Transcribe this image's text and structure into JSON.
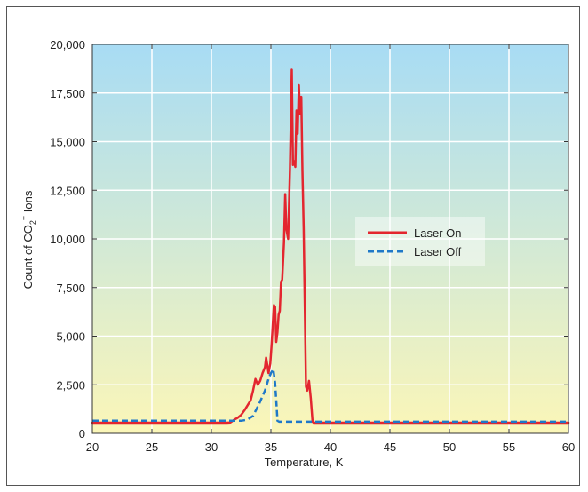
{
  "chart_data": {
    "type": "line",
    "title": "",
    "xlabel": "Temperature, K",
    "ylabel": {
      "prefix": "Count of CO",
      "subscript": "2",
      "superscript": "+",
      "suffix": " Ions"
    },
    "xlim": [
      20,
      60
    ],
    "ylim": [
      0,
      20000
    ],
    "xticks": [
      20,
      25,
      30,
      35,
      40,
      45,
      50,
      55,
      60
    ],
    "yticks": [
      0,
      2500,
      5000,
      7500,
      10000,
      12500,
      15000,
      17500,
      20000
    ],
    "xtick_labels": [
      "20",
      "25",
      "30",
      "35",
      "40",
      "45",
      "50",
      "55",
      "60"
    ],
    "ytick_labels": [
      "0",
      "2,500",
      "5,000",
      "7,500",
      "10,000",
      "12,500",
      "15,000",
      "17,500",
      "20,000"
    ],
    "grid": true,
    "legend_position": "right-center",
    "background_gradient": [
      "#a8dcf4",
      "#fbf6b8"
    ],
    "series": [
      {
        "name": "Laser On",
        "color": "#e3262f",
        "style": "solid",
        "x": [
          20,
          31.3,
          31.6,
          31.9,
          32.2,
          32.5,
          32.8,
          33.1,
          33.3,
          33.5,
          33.7,
          33.9,
          34.1,
          34.3,
          34.5,
          34.6,
          34.7,
          34.8,
          34.95,
          35.05,
          35.15,
          35.25,
          35.35,
          35.45,
          35.55,
          35.65,
          35.75,
          35.85,
          35.95,
          36.1,
          36.2,
          36.3,
          36.45,
          36.6,
          36.75,
          36.85,
          36.95,
          37.05,
          37.15,
          37.25,
          37.35,
          37.45,
          37.55,
          37.65,
          37.75,
          37.85,
          37.95,
          38.05,
          38.2,
          38.35,
          38.5,
          38.6,
          38.75,
          38.85,
          40,
          45,
          50,
          55,
          60
        ],
        "values": [
          550,
          550,
          560,
          700,
          800,
          950,
          1200,
          1500,
          1700,
          2200,
          2800,
          2500,
          2700,
          3100,
          3400,
          3900,
          3500,
          3100,
          3600,
          4500,
          5500,
          6600,
          6500,
          4700,
          5200,
          6100,
          6300,
          7800,
          7900,
          9800,
          12300,
          10500,
          10000,
          13500,
          18700,
          13800,
          14000,
          13700,
          16600,
          15400,
          17900,
          16400,
          17300,
          13500,
          10500,
          6500,
          2400,
          2200,
          2700,
          1800,
          600,
          550,
          550,
          550,
          550,
          550,
          550,
          550,
          550
        ]
      },
      {
        "name": "Laser Off",
        "color": "#1f78c8",
        "style": "dashed",
        "x": [
          20,
          32.5,
          33.0,
          33.5,
          34.0,
          34.5,
          34.8,
          35.0,
          35.2,
          35.35,
          35.45,
          35.55,
          35.7,
          36,
          38,
          40,
          45,
          50,
          55,
          60
        ],
        "values": [
          650,
          650,
          700,
          900,
          1500,
          2200,
          2800,
          3100,
          3300,
          2600,
          1700,
          650,
          600,
          600,
          600,
          600,
          600,
          600,
          600,
          600
        ]
      }
    ]
  }
}
